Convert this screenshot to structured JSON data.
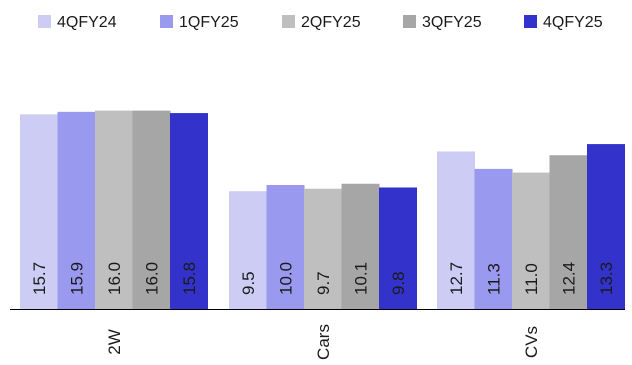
{
  "chart_data": {
    "type": "bar",
    "categories": [
      "2W",
      "Cars",
      "CVs"
    ],
    "series": [
      {
        "name": "4QFY24",
        "values": [
          15.7,
          9.5,
          12.7
        ],
        "color": "#ccccf5"
      },
      {
        "name": "1QFY25",
        "values": [
          15.9,
          10.0,
          11.3
        ],
        "color": "#9999f0"
      },
      {
        "name": "2QFY25",
        "values": [
          16.0,
          9.7,
          11.0
        ],
        "color": "#bfbfbf"
      },
      {
        "name": "3QFY25",
        "values": [
          16.0,
          10.1,
          12.4
        ],
        "color": "#a6a6a6"
      },
      {
        "name": "4QFY25",
        "values": [
          15.8,
          9.8,
          13.3
        ],
        "color": "#3333cc"
      }
    ],
    "ylim": [
      0,
      20
    ],
    "title": "",
    "xlabel": "",
    "ylabel": "",
    "legend_position": "top",
    "grid": false
  }
}
